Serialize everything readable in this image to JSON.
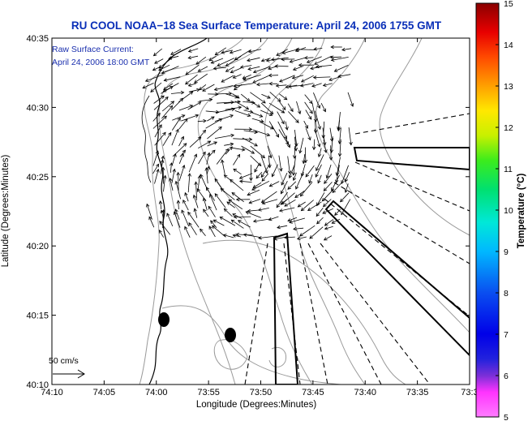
{
  "title": "RU COOL  NOAA−18  Sea Surface Temperature:  April 24, 2006 1755 GMT",
  "annotation": {
    "line1": "Raw Surface Current:",
    "line2": "April 24, 2006 18:00 GMT"
  },
  "scale_label": "50 cm/s",
  "colors": {
    "title": "#0a2fb8",
    "annotation": "#1a2fae",
    "land_bg": "#ffffff",
    "contour": "#9a9a9a",
    "coast": "#000000"
  },
  "colorbar": {
    "label": "Temperature (°C)",
    "min": 5,
    "max": 15,
    "ticks": [
      "5",
      "6",
      "7",
      "8",
      "9",
      "10",
      "11",
      "12",
      "13",
      "14",
      "15"
    ]
  },
  "chart_data": {
    "type": "map",
    "title": "RU COOL  NOAA−18  Sea Surface Temperature:  April 24, 2006 1755 GMT",
    "xlabel": "Longitude (Degrees:Minutes)",
    "ylabel": "Latitude (Degrees:Minutes)",
    "x_ticks": [
      "74:10",
      "74:05",
      "74:00",
      "73:55",
      "73:50",
      "73:45",
      "73:40",
      "73:35",
      "73:3"
    ],
    "y_ticks": [
      "40:10",
      "40:15",
      "40:20",
      "40:25",
      "40:30",
      "40:35"
    ],
    "xlim_minutes_west": [
      10,
      30
    ],
    "ylim_minutes_north": [
      10,
      35
    ],
    "colorbar_range_celsius": [
      5,
      15
    ],
    "vector_scale": "50 cm/s",
    "markers": [
      {
        "shape": "filled-ellipse",
        "lon_min_w": 58.9,
        "lat_min_n": 14.7
      },
      {
        "shape": "filled-ellipse",
        "lon_min_w": 52.3,
        "lat_min_n": 13.5
      }
    ]
  }
}
